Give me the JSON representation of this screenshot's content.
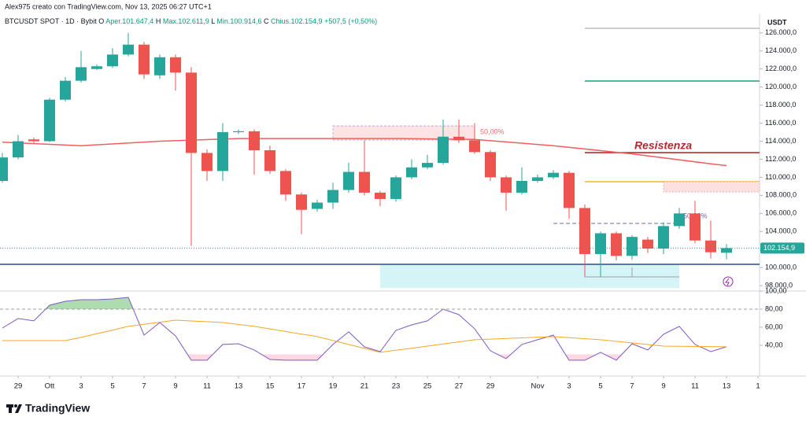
{
  "header": "Alex975 creato con TradingView.com, Nov 13, 2025 06:27 UTC+1",
  "legend": {
    "symbol": "BTCUSDT SPOT · 1D · Bybit",
    "items": [
      [
        "O",
        "Aper.101.647,4"
      ],
      [
        "H",
        "Max.102.611,9"
      ],
      [
        "L",
        "Min.100.914,6"
      ],
      [
        "C",
        "Chius.102.154,9"
      ]
    ],
    "change": "+507,5 (+0,50%)"
  },
  "brand": "TradingView",
  "chart_data": [
    {
      "type": "candlestick",
      "currency": "USDT",
      "up_color": "#26a69a",
      "down_color": "#ef5350",
      "candles": [
        [
          109600,
          112700,
          109400,
          112200
        ],
        [
          112200,
          114700,
          112000,
          114000
        ],
        [
          114200,
          114400,
          113800,
          114000
        ],
        [
          114000,
          118800,
          113900,
          118600
        ],
        [
          118600,
          121100,
          118400,
          120700
        ],
        [
          120700,
          124000,
          120500,
          122200
        ],
        [
          122000,
          122500,
          121900,
          122300
        ],
        [
          122300,
          124300,
          122100,
          123600
        ],
        [
          123600,
          126000,
          123400,
          124700
        ],
        [
          124700,
          125000,
          120900,
          121400
        ],
        [
          121300,
          123600,
          120900,
          123300
        ],
        [
          123300,
          123600,
          119600,
          121600
        ],
        [
          121600,
          122200,
          102400,
          112700
        ],
        [
          112700,
          113100,
          109600,
          110700
        ],
        [
          110700,
          116000,
          109600,
          115000
        ],
        [
          115000,
          115300,
          114800,
          115100
        ],
        [
          115100,
          115300,
          110300,
          113000
        ],
        [
          113000,
          113500,
          110400,
          110700
        ],
        [
          110700,
          110900,
          107400,
          108100
        ],
        [
          108100,
          108300,
          103700,
          106400
        ],
        [
          106500,
          107500,
          106200,
          107200
        ],
        [
          107200,
          109400,
          106500,
          108600
        ],
        [
          108600,
          111600,
          108300,
          110600
        ],
        [
          110600,
          114100,
          108000,
          108300
        ],
        [
          108300,
          108500,
          106800,
          107600
        ],
        [
          107600,
          110200,
          107300,
          110000
        ],
        [
          110000,
          112000,
          109800,
          111100
        ],
        [
          111100,
          112500,
          110900,
          111600
        ],
        [
          111600,
          116400,
          111400,
          114500
        ],
        [
          114500,
          116400,
          113800,
          114100
        ],
        [
          114100,
          116000,
          112600,
          112800
        ],
        [
          112800,
          113000,
          109600,
          110000
        ],
        [
          110000,
          110200,
          106300,
          108300
        ],
        [
          108300,
          111100,
          108100,
          109600
        ],
        [
          109600,
          110300,
          109400,
          110000
        ],
        [
          110000,
          110800,
          109800,
          110500
        ],
        [
          110500,
          110700,
          105400,
          106600
        ],
        [
          106600,
          107000,
          99000,
          101500
        ],
        [
          101500,
          104000,
          99000,
          103800
        ],
        [
          103800,
          104000,
          100800,
          101300
        ],
        [
          101300,
          103600,
          100900,
          103400
        ],
        [
          103100,
          103400,
          101600,
          102100
        ],
        [
          102100,
          105000,
          101500,
          104600
        ],
        [
          104600,
          106600,
          104300,
          106000
        ],
        [
          106000,
          107400,
          102700,
          103000
        ],
        [
          103000,
          105200,
          101000,
          101700
        ],
        [
          101647.4,
          102611.9,
          100914.6,
          102154.9
        ]
      ],
      "last_price_label": "102.154,9",
      "lines": [
        {
          "color": "#ef5f5f",
          "x": [
            0,
            5,
            10,
            15,
            20,
            25,
            30,
            35,
            40,
            45,
            46
          ],
          "values": [
            113900,
            113500,
            114000,
            114300,
            114300,
            114300,
            114200,
            113500,
            112600,
            111500,
            111300
          ]
        }
      ],
      "annotations": [
        "Resistenza",
        "50,00%",
        "50,00%"
      ],
      "xlim": [
        -0.15,
        48.1
      ],
      "ylim": [
        97400,
        127900
      ],
      "yticks": [
        {
          "value": 98000,
          "label": "98.000,0"
        },
        {
          "value": 100000,
          "label": "100.000,0"
        },
        {
          "value": 102000,
          "label": "102.000,0"
        },
        {
          "value": 104000,
          "label": "104.000,0"
        },
        {
          "value": 106000,
          "label": "106.000,0"
        },
        {
          "value": 108000,
          "label": "108.000,0"
        },
        {
          "value": 110000,
          "label": "110.000,0"
        },
        {
          "value": 112000,
          "label": "112.000,0"
        },
        {
          "value": 114000,
          "label": "114.000,0"
        },
        {
          "value": 116000,
          "label": "116.000,0"
        },
        {
          "value": 118000,
          "label": "118.000,0"
        },
        {
          "value": 120000,
          "label": "120.000,0"
        },
        {
          "value": 122000,
          "label": "122.000,0"
        },
        {
          "value": 124000,
          "label": "124.000,0"
        },
        {
          "value": 126000,
          "label": "126.000,0"
        }
      ],
      "xticks": [
        {
          "value": 1,
          "label": "29"
        },
        {
          "value": 3,
          "label": "Ott"
        },
        {
          "value": 5,
          "label": "3"
        },
        {
          "value": 7,
          "label": "5"
        },
        {
          "value": 9,
          "label": "7"
        },
        {
          "value": 11,
          "label": "9"
        },
        {
          "value": 13,
          "label": "11"
        },
        {
          "value": 15,
          "label": "13"
        },
        {
          "value": 17,
          "label": "15"
        },
        {
          "value": 19,
          "label": "17"
        },
        {
          "value": 21,
          "label": "19"
        },
        {
          "value": 23,
          "label": "21"
        },
        {
          "value": 25,
          "label": "23"
        },
        {
          "value": 27,
          "label": "25"
        },
        {
          "value": 29,
          "label": "27"
        },
        {
          "value": 31,
          "label": "29"
        },
        {
          "value": 34,
          "label": "Nov"
        },
        {
          "value": 36,
          "label": "3"
        },
        {
          "value": 38,
          "label": "5"
        },
        {
          "value": 40,
          "label": "7"
        },
        {
          "value": 42,
          "label": "9"
        },
        {
          "value": 44,
          "label": "11"
        },
        {
          "value": 46,
          "label": "13"
        },
        {
          "value": 48,
          "label": "1"
        }
      ]
    },
    {
      "type": "line",
      "xlim": [
        -0.15,
        48.1
      ],
      "ylim": [
        6,
        100
      ],
      "yticks": [
        {
          "value": 100,
          "label": "100,00"
        },
        {
          "value": 80,
          "label": "80,00"
        },
        {
          "value": 60,
          "label": "60,00"
        },
        {
          "value": 40,
          "label": "40,00"
        }
      ],
      "overbought": 80,
      "oversold": 30,
      "series": [
        {
          "color": "#7e57c2",
          "x": [
            0,
            1,
            2,
            3,
            4,
            5,
            6,
            7,
            8,
            9,
            10,
            11,
            12,
            13,
            14,
            15,
            16,
            17,
            18,
            19,
            20,
            21,
            22,
            23,
            24,
            25,
            26,
            27,
            28,
            29,
            30,
            31,
            32,
            33,
            34,
            35,
            36,
            37,
            38,
            39,
            40,
            41,
            42,
            43,
            44,
            45,
            46
          ],
          "values": [
            59.1,
            69.6,
            67.0,
            84.3,
            88.7,
            90.4,
            90.4,
            91.3,
            93.0,
            51.3,
            65.2,
            50.4,
            23.5,
            23.5,
            40.9,
            41.7,
            34.8,
            24.3,
            23.5,
            23.5,
            23.5,
            40.9,
            54.8,
            38.3,
            33.0,
            56.5,
            62.6,
            67.0,
            80.0,
            73.9,
            58.3,
            33.9,
            25.2,
            40.9,
            46.1,
            51.3,
            23.5,
            23.5,
            32.2,
            23.5,
            41.7,
            34.8,
            52.2,
            60.9,
            40.9,
            33.0,
            38.3
          ]
        },
        {
          "color": "#f5a623",
          "x": [
            0,
            4,
            5,
            8,
            11,
            14,
            16,
            20,
            24,
            27,
            30,
            35,
            38,
            42,
            46
          ],
          "values": [
            45.2,
            45.2,
            48.7,
            60.9,
            67.8,
            65.2,
            60.9,
            49.6,
            32.2,
            39.1,
            46.1,
            49.6,
            46.1,
            39.1,
            38.3
          ]
        }
      ]
    }
  ]
}
